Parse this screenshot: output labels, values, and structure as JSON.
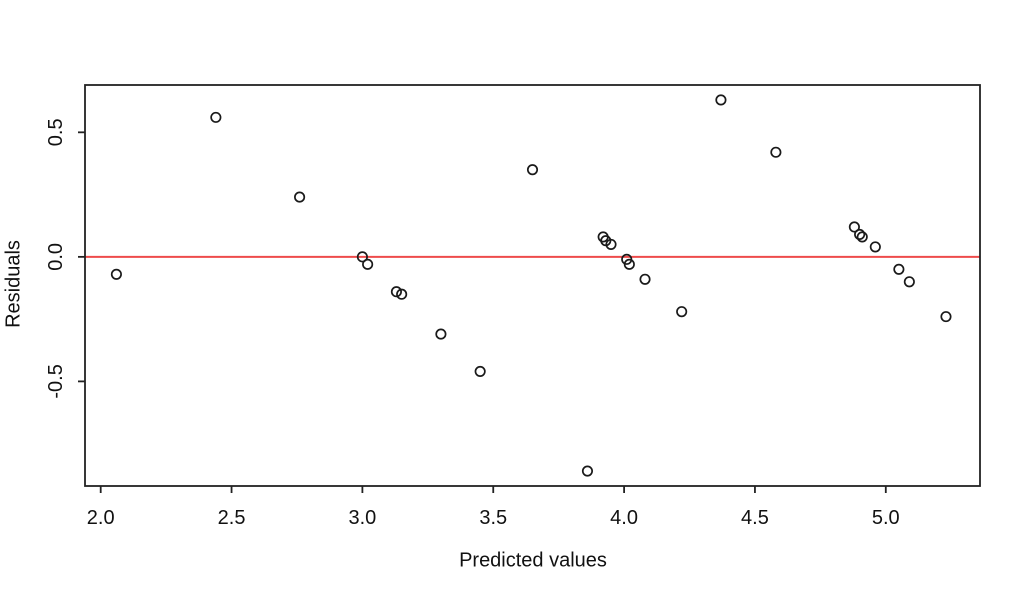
{
  "chart_data": {
    "type": "scatter",
    "title": "",
    "xlabel": "Predicted values",
    "ylabel": "Residuals",
    "xlim": [
      1.94,
      5.36
    ],
    "ylim": [
      -0.92,
      0.69
    ],
    "x_ticks": [
      2.0,
      2.5,
      3.0,
      3.5,
      4.0,
      4.5,
      5.0
    ],
    "x_tick_labels": [
      "2.0",
      "2.5",
      "3.0",
      "3.5",
      "4.0",
      "4.5",
      "5.0"
    ],
    "y_ticks": [
      -0.5,
      0.0,
      0.5
    ],
    "y_tick_labels": [
      "-0.5",
      "0.0",
      "0.5"
    ],
    "grid": false,
    "legend": "none",
    "marker": "open-circle",
    "zero_line_y": 0.0,
    "colors": {
      "frame": "#222222",
      "zero_line": "#ee4b4b",
      "point": "#1a1a1a",
      "background": "#ffffff",
      "text": "#111111"
    },
    "points": [
      [
        2.06,
        -0.07
      ],
      [
        2.44,
        0.56
      ],
      [
        2.76,
        0.24
      ],
      [
        3.0,
        0.0
      ],
      [
        3.02,
        -0.03
      ],
      [
        3.13,
        -0.14
      ],
      [
        3.15,
        -0.15
      ],
      [
        3.3,
        -0.31
      ],
      [
        3.45,
        -0.46
      ],
      [
        3.65,
        0.35
      ],
      [
        3.86,
        -0.86
      ],
      [
        3.92,
        0.08
      ],
      [
        3.93,
        0.065
      ],
      [
        3.95,
        0.05
      ],
      [
        4.01,
        -0.01
      ],
      [
        4.02,
        -0.03
      ],
      [
        4.08,
        -0.09
      ],
      [
        4.22,
        -0.22
      ],
      [
        4.37,
        0.63
      ],
      [
        4.58,
        0.42
      ],
      [
        4.88,
        0.12
      ],
      [
        4.9,
        0.09
      ],
      [
        4.91,
        0.08
      ],
      [
        4.96,
        0.04
      ],
      [
        5.05,
        -0.05
      ],
      [
        5.09,
        -0.1
      ],
      [
        5.23,
        -0.24
      ]
    ]
  }
}
